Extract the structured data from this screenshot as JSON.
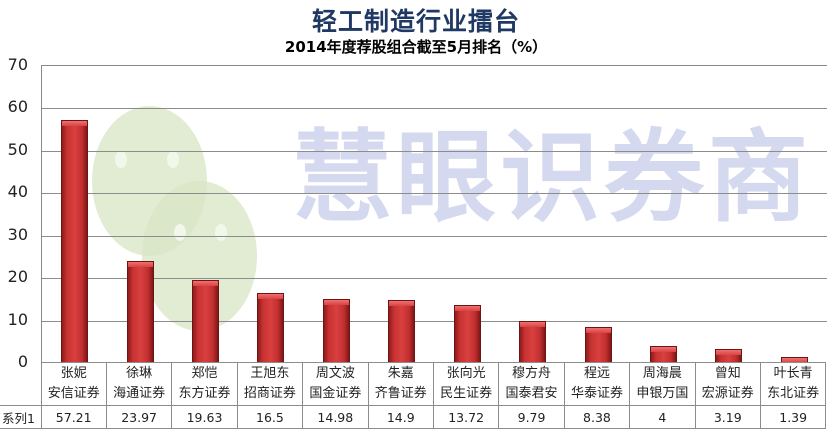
{
  "chart_data": {
    "type": "bar",
    "title": "轻工制造行业擂台",
    "subtitle": "2014年度荐股组合截至5月排名（%）",
    "xlabel": "",
    "ylabel": "",
    "ylim": [
      0,
      70
    ],
    "yticks": [
      "0",
      "10",
      "20",
      "30",
      "40",
      "50",
      "60",
      "70"
    ],
    "grid": true,
    "legend": "data table row",
    "categories": [
      {
        "name": "张妮",
        "broker": "安信证券"
      },
      {
        "name": "徐琳",
        "broker": "海通证券"
      },
      {
        "name": "郑恺",
        "broker": "东方证券"
      },
      {
        "name": "王旭东",
        "broker": "招商证券"
      },
      {
        "name": "周文波",
        "broker": "国金证券"
      },
      {
        "name": "朱嘉",
        "broker": "齐鲁证券"
      },
      {
        "name": "张向光",
        "broker": "民生证券"
      },
      {
        "name": "穆方舟",
        "broker": "国泰君安"
      },
      {
        "name": "程远",
        "broker": "华泰证券"
      },
      {
        "name": "周海晨",
        "broker": "申银万国"
      },
      {
        "name": "曾知",
        "broker": "宏源证券"
      },
      {
        "name": "叶长青",
        "broker": "东北证券"
      }
    ],
    "series": [
      {
        "name": "系列1",
        "values": [
          57.21,
          23.97,
          19.63,
          16.5,
          14.98,
          14.9,
          13.72,
          9.79,
          8.38,
          4,
          3.19,
          1.39
        ],
        "labels": [
          "57.21",
          "23.97",
          "19.63",
          "16.5",
          "14.98",
          "14.9",
          "13.72",
          "9.79",
          "8.38",
          "4",
          "3.19",
          "1.39"
        ]
      }
    ],
    "bar_color": "#c83232"
  },
  "watermark": {
    "text": "慧眼识券商"
  }
}
